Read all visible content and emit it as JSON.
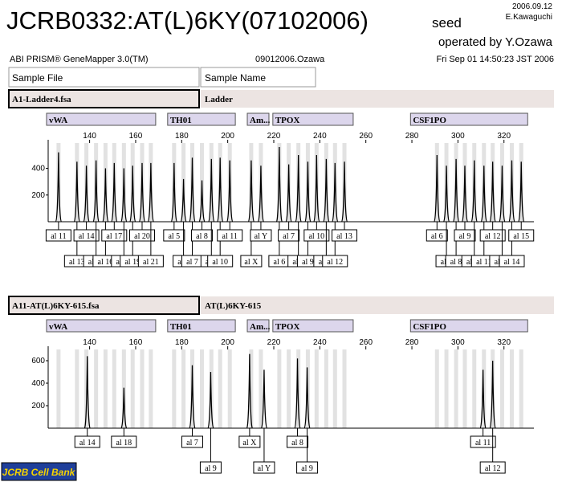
{
  "header": {
    "title": "JCRB0332:AT(L)6KY(07102006)",
    "seed": "seed",
    "date": "2006.09.12",
    "author": "E.Kawaguchi",
    "operator": "operated by Y.Ozawa",
    "software": "ABI PRISM® GeneMapper 3.0(TM)",
    "project": "09012006.Ozawa",
    "timestamp": "Fri Sep 01 14:50:23 JST 2006",
    "col_file": "Sample File",
    "col_name": "Sample Name"
  },
  "xlim": [
    122,
    333
  ],
  "xticks": [
    140,
    160,
    180,
    200,
    220,
    240,
    260,
    280,
    300,
    320
  ],
  "markers": [
    {
      "label": "vWA",
      "range": [
        121.3,
        168.7
      ]
    },
    {
      "label": "TH01",
      "range": [
        173.9,
        203.3
      ]
    },
    {
      "label": "Am...",
      "range": [
        208.5,
        217.9
      ]
    },
    {
      "label": "TPOX",
      "range": [
        219.6,
        254.5
      ]
    },
    {
      "label": "CSF1PO",
      "range": [
        279.4,
        330.3
      ]
    }
  ],
  "panels": [
    {
      "sample_file": "A1-Ladder4.fsa",
      "sample_name": "Ladder",
      "ylim": [
        0,
        590
      ],
      "yticks": [
        200,
        400
      ],
      "peaks": [
        {
          "x": 126.5,
          "height": 520,
          "label": "al 11"
        },
        {
          "x": 134.5,
          "height": 450,
          "label": "al 13"
        },
        {
          "x": 138.6,
          "height": 420,
          "label": "al 14"
        },
        {
          "x": 142.8,
          "height": 460,
          "label": "al 15"
        },
        {
          "x": 146.9,
          "height": 400,
          "label": "al 16"
        },
        {
          "x": 150.7,
          "height": 440,
          "label": "al 17"
        },
        {
          "x": 154.9,
          "height": 400,
          "label": "al 18"
        },
        {
          "x": 158.7,
          "height": 420,
          "label": "al 19"
        },
        {
          "x": 162.8,
          "height": 440,
          "label": "al 20"
        },
        {
          "x": 166.6,
          "height": 440,
          "label": "al 21"
        },
        {
          "x": 176.7,
          "height": 440,
          "label": "al 5"
        },
        {
          "x": 180.8,
          "height": 320,
          "label": "al 6"
        },
        {
          "x": 184.6,
          "height": 480,
          "label": "al 7"
        },
        {
          "x": 188.8,
          "height": 310,
          "label": "al 8"
        },
        {
          "x": 192.9,
          "height": 470,
          "label": "al 9"
        },
        {
          "x": 196.7,
          "height": 480,
          "label": "al 10"
        },
        {
          "x": 200.9,
          "height": 460,
          "label": "al 11"
        },
        {
          "x": 210.2,
          "height": 460,
          "label": "al X"
        },
        {
          "x": 214.4,
          "height": 420,
          "label": "al Y"
        },
        {
          "x": 222.4,
          "height": 560,
          "label": "al 6"
        },
        {
          "x": 226.5,
          "height": 430,
          "label": "al 7"
        },
        {
          "x": 230.7,
          "height": 500,
          "label": "al 8"
        },
        {
          "x": 234.8,
          "height": 450,
          "label": "al 9"
        },
        {
          "x": 238.6,
          "height": 500,
          "label": "al 10"
        },
        {
          "x": 242.8,
          "height": 470,
          "label": "al 11"
        },
        {
          "x": 246.6,
          "height": 440,
          "label": "al 12"
        },
        {
          "x": 250.7,
          "height": 450,
          "label": "al 13"
        },
        {
          "x": 290.9,
          "height": 500,
          "label": "al 6"
        },
        {
          "x": 295.0,
          "height": 420,
          "label": "al 7"
        },
        {
          "x": 299.2,
          "height": 470,
          "label": "al 8"
        },
        {
          "x": 303.0,
          "height": 420,
          "label": "al 9"
        },
        {
          "x": 307.1,
          "height": 460,
          "label": "al 10"
        },
        {
          "x": 311.3,
          "height": 420,
          "label": "al 11"
        },
        {
          "x": 315.1,
          "height": 450,
          "label": "al 12"
        },
        {
          "x": 319.2,
          "height": 420,
          "label": "al 13"
        },
        {
          "x": 323.4,
          "height": 460,
          "label": "al 14"
        },
        {
          "x": 327.5,
          "height": 450,
          "label": "al 15"
        }
      ]
    },
    {
      "sample_file": "A11-AT(L)6KY-615.fsa",
      "sample_name": "AT(L)6KY-615",
      "ylim": [
        0,
        700
      ],
      "yticks": [
        200,
        400,
        600
      ],
      "peaks": [
        {
          "x": 139.0,
          "height": 640,
          "label": "al 14"
        },
        {
          "x": 154.9,
          "height": 360,
          "label": "al 18"
        },
        {
          "x": 184.6,
          "height": 560,
          "label": "al 7"
        },
        {
          "x": 192.6,
          "height": 500,
          "label": "al 9"
        },
        {
          "x": 209.5,
          "height": 660,
          "label": "al X"
        },
        {
          "x": 215.8,
          "height": 520,
          "label": "al Y"
        },
        {
          "x": 230.3,
          "height": 620,
          "label": "al 8"
        },
        {
          "x": 234.5,
          "height": 540,
          "label": "al 9"
        },
        {
          "x": 310.9,
          "height": 520,
          "label": "al 11"
        },
        {
          "x": 315.1,
          "height": 600,
          "label": "al 12"
        }
      ]
    }
  ],
  "logo": "JCRB Cell Bank"
}
